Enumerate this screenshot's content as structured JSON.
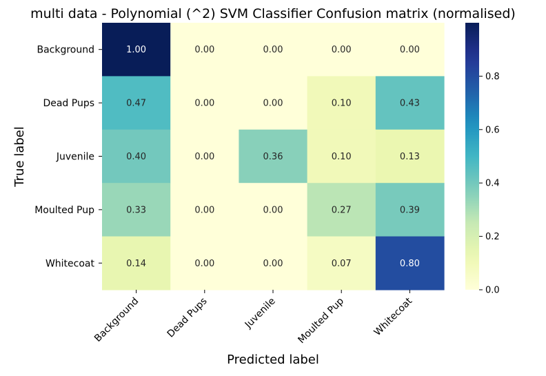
{
  "chart_data": {
    "type": "heatmap",
    "title": "multi data - Polynomial (^2) SVM Classifier Confusion matrix (normalised)",
    "xlabel": "Predicted label",
    "ylabel": "True label",
    "x_categories": [
      "Background",
      "Dead Pups",
      "Juvenile",
      "Moulted Pup",
      "Whitecoat"
    ],
    "y_categories": [
      "Background",
      "Dead Pups",
      "Juvenile",
      "Moulted Pup",
      "Whitecoat"
    ],
    "values": [
      [
        1.0,
        0.0,
        0.0,
        0.0,
        0.0
      ],
      [
        0.47,
        0.0,
        0.0,
        0.1,
        0.43
      ],
      [
        0.4,
        0.0,
        0.36,
        0.1,
        0.13
      ],
      [
        0.33,
        0.0,
        0.0,
        0.27,
        0.39
      ],
      [
        0.14,
        0.0,
        0.0,
        0.07,
        0.8
      ]
    ],
    "cell_labels": [
      [
        "1.00",
        "0.00",
        "0.00",
        "0.00",
        "0.00"
      ],
      [
        "0.47",
        "0.00",
        "0.00",
        "0.10",
        "0.43"
      ],
      [
        "0.40",
        "0.00",
        "0.36",
        "0.10",
        "0.13"
      ],
      [
        "0.33",
        "0.00",
        "0.00",
        "0.27",
        "0.39"
      ],
      [
        "0.14",
        "0.00",
        "0.00",
        "0.07",
        "0.80"
      ]
    ],
    "colormap": "YlGnBu",
    "colorbar": {
      "range": [
        0,
        1
      ],
      "ticks": [
        0.0,
        0.2,
        0.4,
        0.6,
        0.8
      ],
      "tick_labels": [
        "0.0",
        "0.2",
        "0.4",
        "0.6",
        "0.8"
      ]
    }
  }
}
